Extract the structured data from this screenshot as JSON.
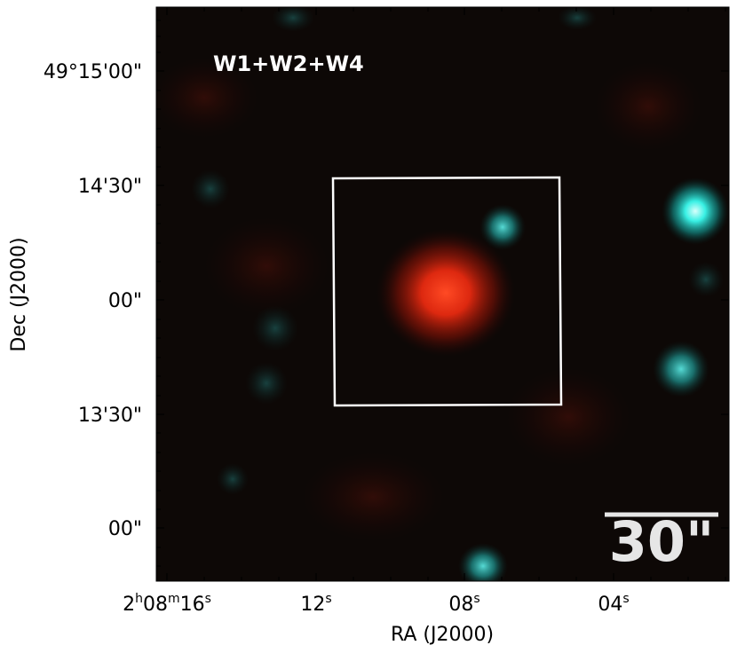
{
  "band_label": "W1+W2+W4",
  "scale_bar_label": "30\"",
  "x_axis": {
    "label": "RA (J2000)",
    "ticks": [
      {
        "main": "2",
        "sup1": "h",
        "mid": "08",
        "sup2": "m",
        "end": "16",
        "sup3": "s"
      },
      {
        "main": "12",
        "sup3": "s"
      },
      {
        "main": "08",
        "sup3": "s"
      },
      {
        "main": "04",
        "sup3": "s"
      }
    ]
  },
  "y_axis": {
    "label": "Dec (J2000)",
    "ticks": [
      "49°15'00\"",
      "14'30\"",
      "00\"",
      "13'30\"",
      "00\""
    ]
  },
  "colors": {
    "background": "#0d0806",
    "source_red": "#ff3a1a",
    "star_cyan": "#3fe0dc",
    "aperture_box": "#ffffff"
  }
}
